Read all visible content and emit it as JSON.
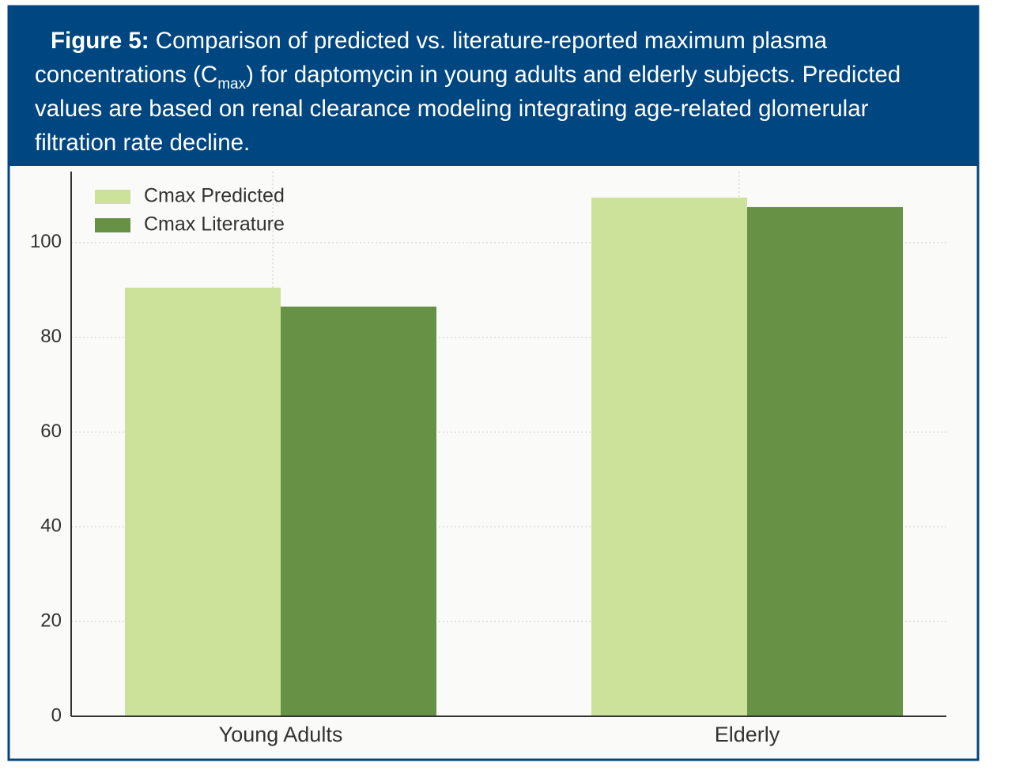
{
  "chart_data": {
    "type": "bar",
    "caption": {
      "label": "Figure 5:",
      "text_before": "Comparison of predicted vs. literature-reported maximum plasma concentrations (C",
      "subscript": "max",
      "text_after": ") for daptomycin in young adults and elderly subjects. Predicted values are based on renal clearance modeling integrating age-related glomerular filtration rate decline."
    },
    "categories": [
      "Young Adults",
      "Elderly"
    ],
    "series": [
      {
        "name": "Cmax Predicted",
        "color": "#cce29a",
        "values": [
          90.5,
          109.5
        ]
      },
      {
        "name": "Cmax Literature",
        "color": "#679245",
        "values": [
          86.5,
          107.5
        ]
      }
    ],
    "ylim": [
      0,
      115
    ],
    "yticks": [
      0,
      20,
      40,
      60,
      80,
      100
    ],
    "grid": true,
    "legend": "upper-left"
  }
}
